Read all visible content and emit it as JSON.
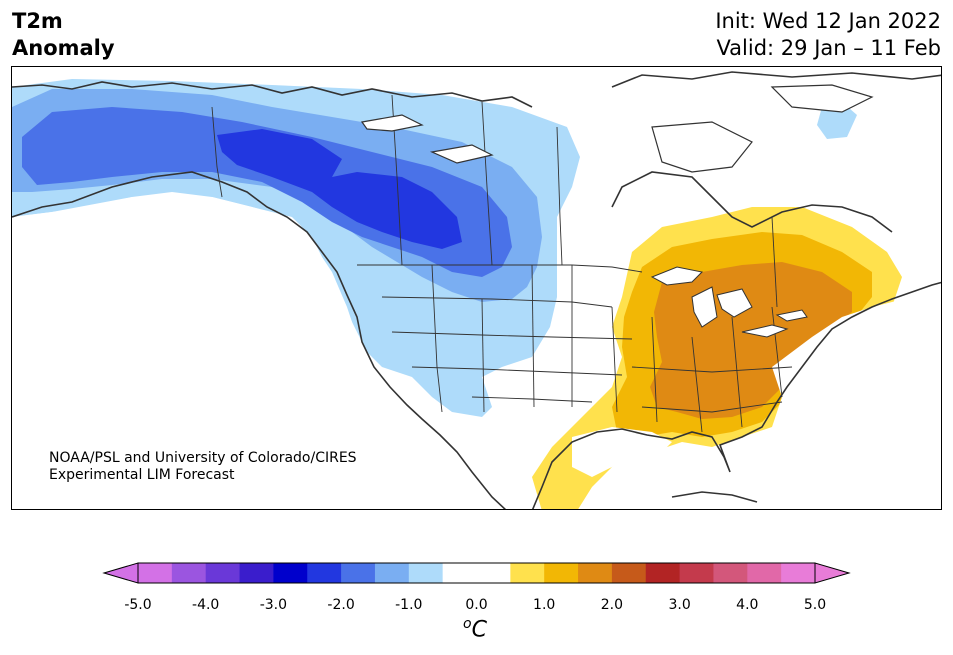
{
  "title": {
    "variable": "T2m",
    "subtitle": "Anomaly",
    "init": "Init: Wed 12 Jan 2022",
    "valid": "Valid: 29 Jan – 11 Feb"
  },
  "credit": {
    "line1": "NOAA/PSL and University of Colorado/CIRES",
    "line2": "Experimental LIM Forecast"
  },
  "colorbar": {
    "unit_base": "C",
    "unit_sup": "o",
    "ticks": [
      "-5.0",
      "-4.0",
      "-3.0",
      "-2.0",
      "-1.0",
      "0.0",
      "1.0",
      "2.0",
      "3.0",
      "4.0",
      "5.0"
    ],
    "colors": [
      "#d371e6",
      "#9b55e0",
      "#6a38d8",
      "#3a1dcc",
      "#0000cc",
      "#2237e0",
      "#4a72e8",
      "#7aaef2",
      "#aedbfa",
      "#ffffff",
      "#ffffff",
      "#ffe14d",
      "#f2b705",
      "#df8a14",
      "#c65a1a",
      "#b22424",
      "#c43a4c",
      "#d3577b",
      "#e168a8",
      "#e87cd8"
    ],
    "under_color": "#d371e6",
    "over_color": "#e87cd8"
  },
  "map": {
    "region": "North America",
    "anomaly_colors": {
      "cold_1": "#aedbfa",
      "cold_2": "#7aaef2",
      "cold_3": "#4a72e8",
      "cold_4": "#2237e0",
      "warm_1": "#ffe14d",
      "warm_2": "#f2b705",
      "warm_3": "#df8a14"
    }
  }
}
